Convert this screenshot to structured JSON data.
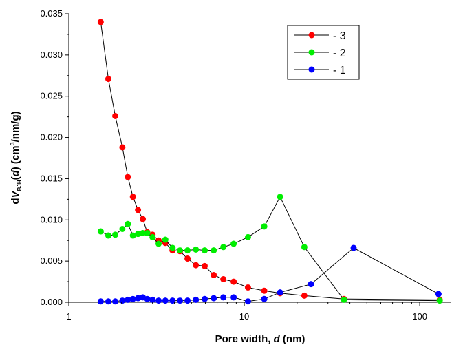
{
  "chart_data": {
    "type": "scatter",
    "x_scale": "log",
    "xlim": [
      1,
      150
    ],
    "ylim": [
      0,
      0.035
    ],
    "x_ticks": [
      1,
      10,
      100
    ],
    "x_tick_labels": [
      "1",
      "10",
      "100"
    ],
    "y_ticks": [
      0,
      0.005,
      0.01,
      0.015,
      0.02,
      0.025,
      0.03,
      0.035
    ],
    "y_tick_labels": [
      "0.000",
      "0.005",
      "0.010",
      "0.015",
      "0.020",
      "0.025",
      "0.030",
      "0.035"
    ],
    "xlabel": {
      "prefix": "Pore width, ",
      "var": "d",
      "suffix": " (nm)"
    },
    "ylabel": {
      "d": "d",
      "V": "V",
      "sub": "BJH",
      "open": "(",
      "var": "d",
      "close": ") (cm",
      "sup": "3",
      "rest": "/nm/g)"
    },
    "legend_position": "top-right",
    "legend_prefix": "-",
    "grid": false,
    "series": [
      {
        "name": "3",
        "color": "#ff0000",
        "x": [
          1.52,
          1.68,
          1.84,
          2.02,
          2.17,
          2.32,
          2.48,
          2.64,
          2.8,
          3.0,
          3.25,
          3.55,
          3.9,
          4.3,
          4.75,
          5.3,
          5.95,
          6.7,
          7.6,
          8.7,
          10.5,
          13.0,
          16.0,
          22.0,
          37.0,
          130.0
        ],
        "y": [
          0.034,
          0.0271,
          0.0226,
          0.0188,
          0.0152,
          0.0128,
          0.0112,
          0.0101,
          0.0085,
          0.0082,
          0.0075,
          0.0072,
          0.0063,
          0.0062,
          0.0053,
          0.0045,
          0.0044,
          0.0033,
          0.0028,
          0.0025,
          0.0018,
          0.0014,
          0.0011,
          0.0008,
          0.0004,
          0.0003
        ]
      },
      {
        "name": "2",
        "color": "#00ee00",
        "x": [
          1.52,
          1.68,
          1.84,
          2.02,
          2.17,
          2.32,
          2.48,
          2.64,
          2.8,
          3.0,
          3.25,
          3.55,
          3.9,
          4.3,
          4.75,
          5.3,
          5.95,
          6.7,
          7.6,
          8.7,
          10.5,
          13.0,
          16.0,
          22.0,
          37.0,
          130.0
        ],
        "y": [
          0.0086,
          0.0081,
          0.0082,
          0.0089,
          0.0095,
          0.0081,
          0.0083,
          0.0084,
          0.0084,
          0.0079,
          0.0071,
          0.0076,
          0.0066,
          0.0063,
          0.0063,
          0.0064,
          0.0063,
          0.0063,
          0.0067,
          0.0071,
          0.0079,
          0.0092,
          0.0128,
          0.0067,
          0.0003,
          0.0002
        ]
      },
      {
        "name": "1",
        "color": "#0000ff",
        "x": [
          1.52,
          1.68,
          1.84,
          2.02,
          2.17,
          2.32,
          2.48,
          2.64,
          2.8,
          3.0,
          3.25,
          3.55,
          3.9,
          4.3,
          4.75,
          5.3,
          5.95,
          6.7,
          7.6,
          8.7,
          10.5,
          13.0,
          16.0,
          24.0,
          42.0,
          128.0
        ],
        "y": [
          0.0001,
          0.0001,
          0.0001,
          0.0002,
          0.0003,
          0.0004,
          0.0005,
          0.0006,
          0.0004,
          0.0003,
          0.0002,
          0.0002,
          0.0002,
          0.0002,
          0.0002,
          0.0003,
          0.0004,
          0.0005,
          0.0006,
          0.0006,
          0.0001,
          0.0004,
          0.0012,
          0.0022,
          0.0066,
          0.001
        ]
      }
    ]
  }
}
